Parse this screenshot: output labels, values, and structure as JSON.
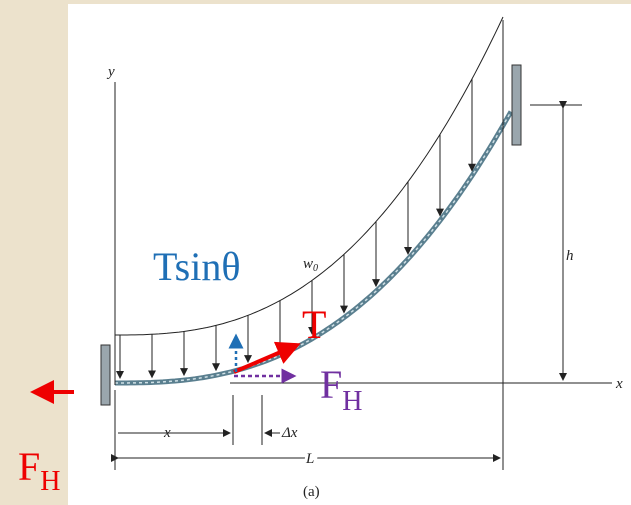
{
  "labels": {
    "y_axis": "y",
    "x_axis": "x",
    "height": "h",
    "load": "w",
    "load_sub": "0",
    "tension_component": "Tsinθ",
    "tension": "T",
    "horizontal_force": "F",
    "horizontal_force_sub": "H",
    "left_force": "F",
    "left_force_sub": "H",
    "segment_position": "x",
    "segment_width": "Δx",
    "span": "L",
    "caption": "(a)"
  }
}
